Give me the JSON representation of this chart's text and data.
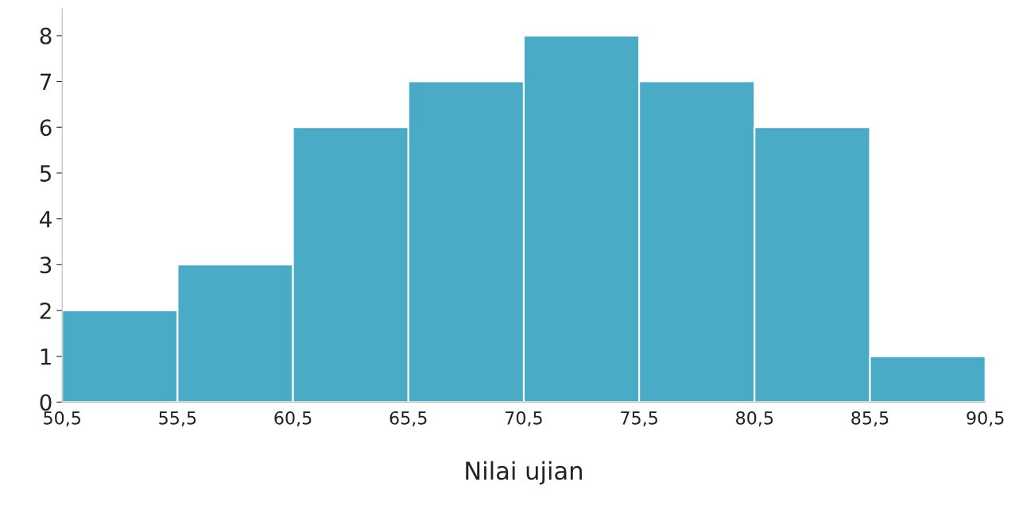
{
  "chart_data": {
    "type": "histogram",
    "xlabel": "Nilai ujian",
    "bins": [
      50.5,
      55.5,
      60.5,
      65.5,
      70.5,
      75.5,
      80.5,
      85.5,
      90.5
    ],
    "values": [
      2,
      3,
      6,
      7,
      8,
      7,
      6,
      1
    ],
    "color": "#4aabc7",
    "xlim": [
      50.5,
      90.5
    ],
    "xticks": [
      {
        "value": 50.5,
        "label": "50,5"
      },
      {
        "value": 55.5,
        "label": "55,5"
      },
      {
        "value": 60.5,
        "label": "60,5"
      },
      {
        "value": 65.5,
        "label": "65,5"
      },
      {
        "value": 70.5,
        "label": "70,5"
      },
      {
        "value": 75.5,
        "label": "75,5"
      },
      {
        "value": 80.5,
        "label": "80,5"
      },
      {
        "value": 85.5,
        "label": "85,5"
      },
      {
        "value": 90.5,
        "label": "90,5"
      }
    ],
    "ylim": [
      0,
      8.6
    ],
    "yticks": [
      0,
      1,
      2,
      3,
      4,
      5,
      6,
      7,
      8
    ],
    "grid": false
  }
}
